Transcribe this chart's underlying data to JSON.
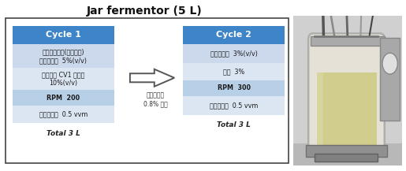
{
  "title": "Jar fermentor (5 L)",
  "title_fontsize": 10,
  "title_fontweight": "bold",
  "cycle1_header": "Cycle 1",
  "cycle2_header": "Cycle 2",
  "header_bg": "#3d85c8",
  "header_text_color": "#ffffff",
  "cycle1_rows": [
    "알코올발효액(벌낙거리)\n에탄올농도  5%(v/v)",
    "초산균주 CV1 배양액\n10%(v/v)",
    "RPM  200",
    "산소주입량  0.5 vvm"
  ],
  "cycle2_rows": [
    "에탄올농도  3%(v/v)",
    "산도  3%",
    "RPM  300",
    "산소주입량  0.5 vvm"
  ],
  "cycle1_row_bgs": [
    "#ccd9ed",
    "#dce6f3",
    "#b8cfe8",
    "#dce6f3"
  ],
  "cycle2_row_bgs": [
    "#ccd9ed",
    "#dce6f3",
    "#b8cfe8",
    "#dce6f3"
  ],
  "cycle1_bold_rows": [
    2
  ],
  "cycle2_bold_rows": [
    2
  ],
  "arrow_label": "에탄올농도\n0.8% 이하",
  "total_label": "Total 3 L",
  "outer_box_edgecolor": "#444444",
  "figure_bg": "#ffffff",
  "left_panel_bg": "#ffffff",
  "right_panel_bg": "#c0c0c0"
}
